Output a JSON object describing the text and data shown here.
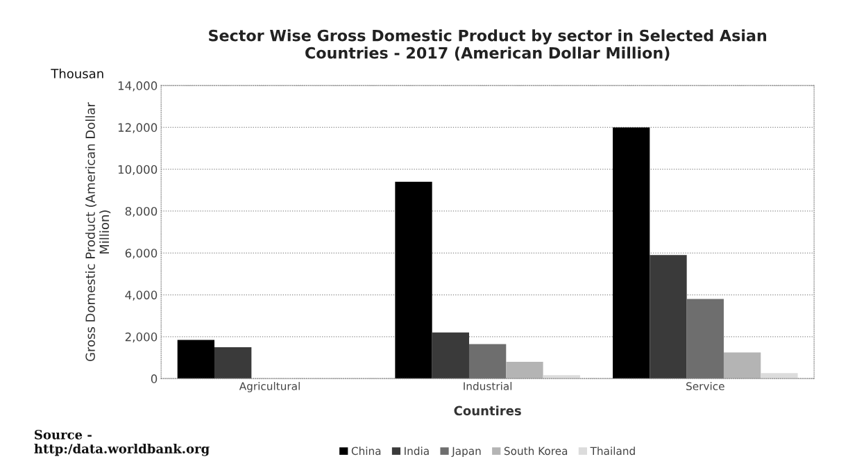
{
  "chart_data": {
    "type": "bar",
    "title": "Sector Wise Gross Domestic Product by sector in Selected Asian\nCountries - 2017 (American Dollar Million)",
    "xlabel": "Countires",
    "ylabel": "Gross Domestic Product (American Dollar\nMillion)",
    "categories": [
      "Agricultural",
      "Industrial",
      "Service"
    ],
    "series": [
      {
        "name": "China",
        "color": "#000000",
        "values": [
          1850,
          9400,
          12000
        ]
      },
      {
        "name": "India",
        "color": "#3a3a3a",
        "values": [
          1500,
          2200,
          5900
        ]
      },
      {
        "name": "Japan",
        "color": "#6e6e6e",
        "values": [
          null,
          1650,
          3800
        ]
      },
      {
        "name": "South Korea",
        "color": "#b4b4b4",
        "values": [
          null,
          800,
          1250
        ]
      },
      {
        "name": "Thailand",
        "color": "#dcdcdc",
        "values": [
          null,
          160,
          260
        ]
      }
    ],
    "ylim": [
      0,
      14000
    ],
    "yticks": [
      {
        "value": 0,
        "label": "0"
      },
      {
        "value": 2000,
        "label": "2,000"
      },
      {
        "value": 4000,
        "label": "4,000"
      },
      {
        "value": 6000,
        "label": "6,000"
      },
      {
        "value": 8000,
        "label": "8,000"
      },
      {
        "value": 10000,
        "label": "10,000"
      },
      {
        "value": 12000,
        "label": "12,000"
      },
      {
        "value": 14000,
        "label": "14,000"
      }
    ],
    "grid": "y",
    "legend": "bottom",
    "annotations": [
      "Thousan",
      "Source -\nhttp:/data.worldbank.org"
    ]
  }
}
